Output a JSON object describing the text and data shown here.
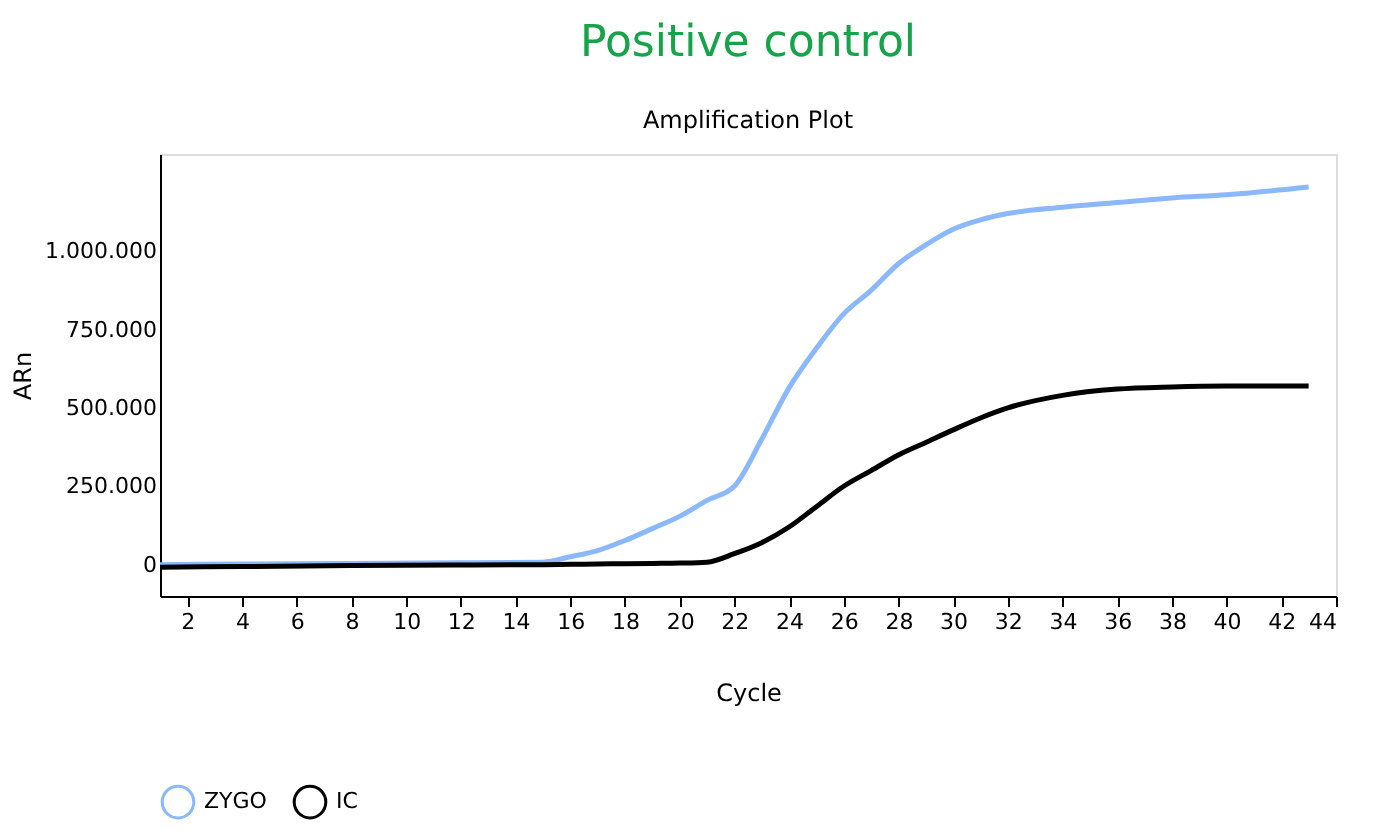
{
  "chart_data": {
    "type": "line",
    "title": "Positive control",
    "subtitle": "Amplification Plot",
    "xlabel": "Cycle",
    "ylabel": "ARn",
    "x": [
      1,
      4,
      8,
      12,
      15,
      16,
      17,
      18,
      19,
      20,
      21,
      22,
      23,
      24,
      25,
      26,
      27,
      28,
      29,
      30,
      31,
      32,
      34,
      36,
      38,
      40,
      43
    ],
    "series": [
      {
        "name": "ZYGO",
        "color": "#8ab8fb",
        "values": [
          0,
          2000,
          4000,
          6000,
          8000,
          25000,
          45000,
          77000,
          115000,
          154000,
          205000,
          250000,
          400000,
          564000,
          690000,
          800000,
          875000,
          960000,
          1020000,
          1070000,
          1100000,
          1120000,
          1140000,
          1155000,
          1170000,
          1180000,
          1205000
        ]
      },
      {
        "name": "IC",
        "color": "#000000",
        "values": [
          -8000,
          -6000,
          -3000,
          -1000,
          0,
          1000,
          2000,
          3000,
          4000,
          5000,
          8000,
          35000,
          70000,
          120000,
          185000,
          250000,
          300000,
          350000,
          390000,
          430000,
          468000,
          500000,
          540000,
          560000,
          567000,
          570000,
          570000
        ]
      }
    ],
    "xlim": [
      1,
      44
    ],
    "xticks": [
      2,
      4,
      6,
      8,
      10,
      12,
      14,
      16,
      18,
      20,
      22,
      24,
      26,
      28,
      30,
      32,
      34,
      36,
      38,
      40,
      42,
      44
    ],
    "ylim": [
      -100000,
      1310000
    ],
    "yticks": [
      {
        "value": 0,
        "label": "0"
      },
      {
        "value": 250000,
        "label": "250.000"
      },
      {
        "value": 500000,
        "label": "500.000"
      },
      {
        "value": 750000,
        "label": "750.000"
      },
      {
        "value": 1000000,
        "label": "1.000.000"
      }
    ],
    "grid": false,
    "legend": "bottom",
    "marker": "none",
    "line_style": "solid"
  }
}
